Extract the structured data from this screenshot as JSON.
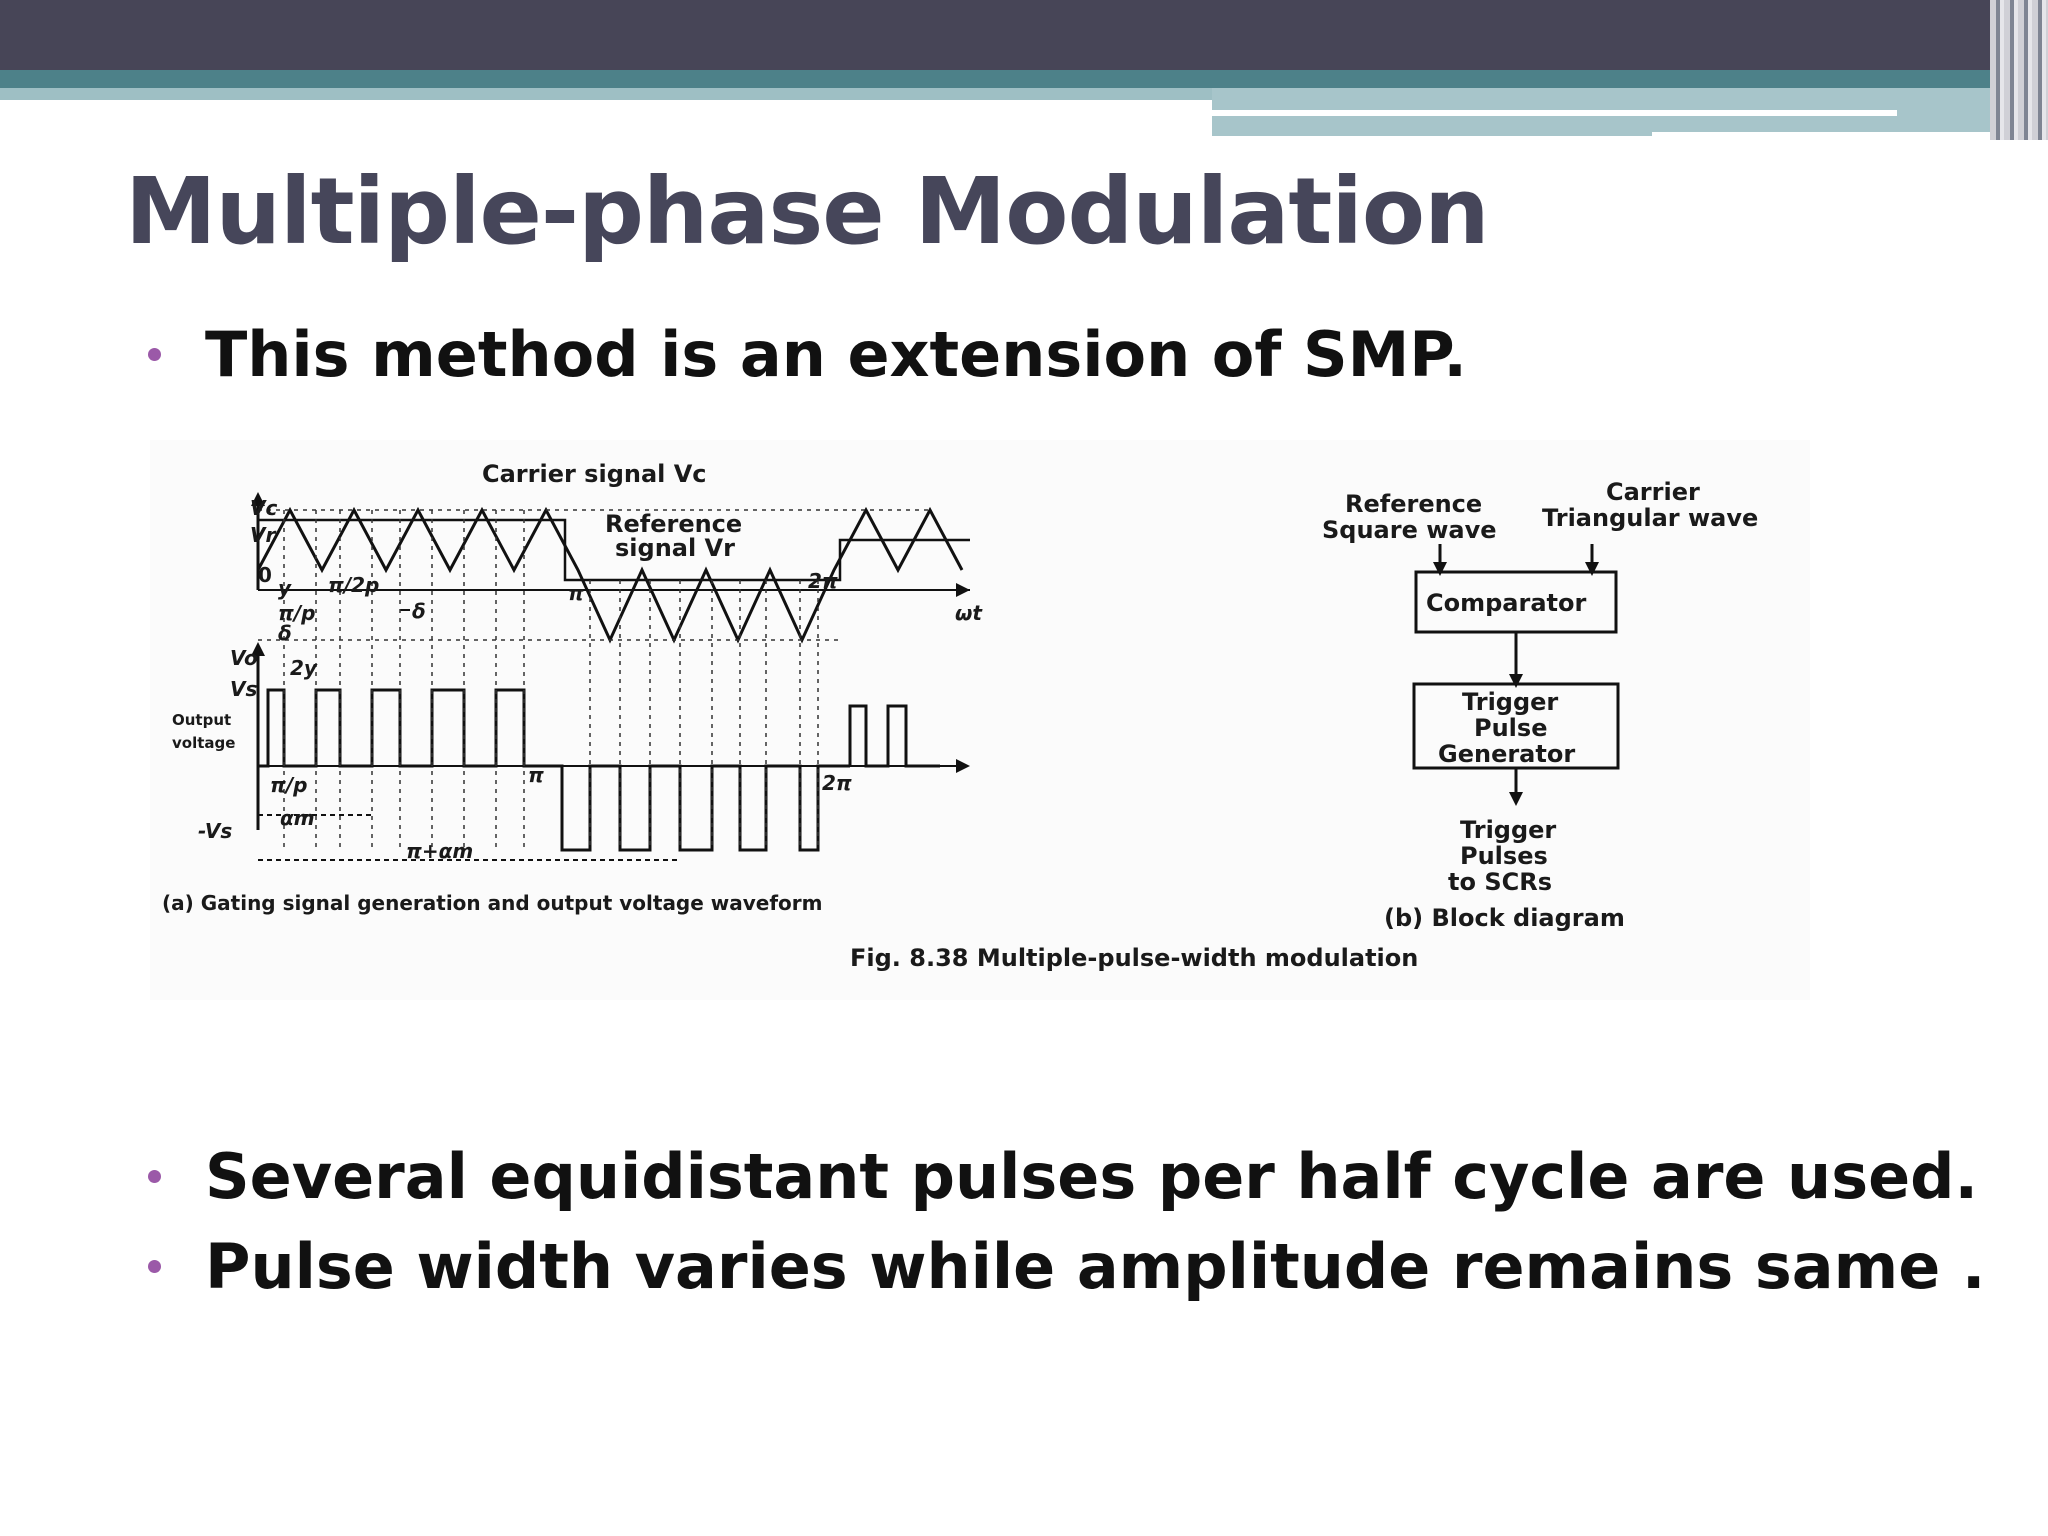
{
  "slide": {
    "title": "Multiple-phase Modulation",
    "bullets": [
      "This method is an extension of SMP.",
      "Several equidistant pulses per half cycle are used.",
      "Pulse width varies while amplitude remains same ."
    ],
    "accent_colors": {
      "top_bar": "#474557",
      "teal_band": "#4d8189",
      "bullet": "#9b59a8",
      "title": "#46465a"
    }
  },
  "figure": {
    "caption": "Fig. 8.38 Multiple-pulse-width modulation",
    "waveform": {
      "caption": "(a) Gating signal generation and output voltage waveform",
      "carrier_label": "Carrier signal Vc",
      "reference_label_line1": "Reference",
      "reference_label_line2": "signal Vr",
      "axis_wt": "ωt",
      "vc": "Vc",
      "vr": "Vr",
      "zero": "0",
      "y": "y",
      "pi_2p": "π/2p",
      "pi_p": "π/p",
      "delta": "δ",
      "pi": "π",
      "two_pi": "2π",
      "vo": "Vo",
      "two_y": "2y",
      "vs": "Vs",
      "neg_vs": "-Vs",
      "output_voltage_line1": "Output",
      "output_voltage_line2": "voltage",
      "alpha_m": "αm",
      "pi_plus_alpha_m": "π+αm"
    },
    "block": {
      "caption": "(b) Block diagram",
      "input1_line1": "Reference",
      "input1_line2": "Square wave",
      "input2_line1": "Carrier",
      "input2_line2": "Triangular wave",
      "comparator": "Comparator",
      "generator_line1": "Trigger",
      "generator_line2": "Pulse",
      "generator_line3": "Generator",
      "output_line1": "Trigger",
      "output_line2": "Pulses",
      "output_line3": "to SCRs"
    }
  }
}
